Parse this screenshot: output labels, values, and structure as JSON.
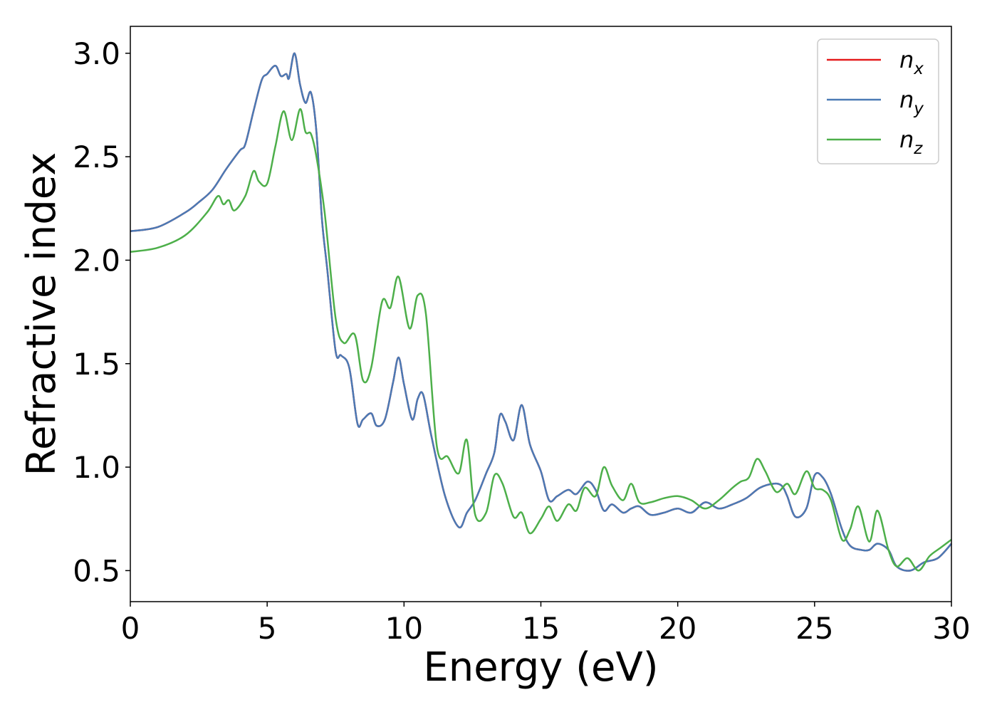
{
  "chart_data": {
    "type": "line",
    "xlabel": "Energy (eV)",
    "ylabel": "Refractive index",
    "xlim": [
      0,
      30
    ],
    "ylim": [
      0.35,
      3.13
    ],
    "xticks": [
      0,
      5,
      10,
      15,
      20,
      25,
      30
    ],
    "xtick_labels": [
      "0",
      "5",
      "10",
      "15",
      "20",
      "25",
      "30"
    ],
    "yticks": [
      0.5,
      1.0,
      1.5,
      2.0,
      2.5,
      3.0
    ],
    "ytick_labels": [
      "0.5",
      "1.0",
      "1.5",
      "2.0",
      "2.5",
      "3.0"
    ],
    "grid": false,
    "legend_position": "top-right",
    "series": [
      {
        "name": "n_x",
        "legend_main": "n",
        "legend_sub": "x",
        "color": "#e41a1c",
        "x": [
          0,
          1,
          2,
          2.5,
          3,
          3.5,
          4,
          4.2,
          4.5,
          4.8,
          5,
          5.3,
          5.5,
          5.7,
          5.8,
          6,
          6.2,
          6.4,
          6.6,
          6.8,
          7,
          7.2,
          7.5,
          7.7,
          8,
          8.3,
          8.5,
          8.8,
          9,
          9.3,
          9.6,
          9.8,
          10,
          10.3,
          10.5,
          10.7,
          11,
          11.5,
          12,
          12.3,
          12.6,
          13,
          13.3,
          13.5,
          13.7,
          14,
          14.3,
          14.6,
          15,
          15.3,
          15.6,
          16,
          16.3,
          16.7,
          17,
          17.3,
          17.6,
          18,
          18.3,
          18.6,
          19,
          19.5,
          20,
          20.5,
          21,
          21.5,
          22,
          22.5,
          23,
          23.5,
          23.8,
          24,
          24.3,
          24.7,
          25,
          25.3,
          25.6,
          26,
          26.3,
          26.7,
          27,
          27.3,
          27.7,
          28,
          28.5,
          29,
          29.5,
          30
        ],
        "y": [
          2.14,
          2.16,
          2.23,
          2.28,
          2.34,
          2.44,
          2.53,
          2.56,
          2.72,
          2.87,
          2.9,
          2.94,
          2.89,
          2.9,
          2.88,
          3.0,
          2.85,
          2.76,
          2.81,
          2.62,
          2.2,
          1.95,
          1.56,
          1.54,
          1.48,
          1.21,
          1.23,
          1.26,
          1.2,
          1.23,
          1.41,
          1.53,
          1.4,
          1.23,
          1.33,
          1.35,
          1.15,
          0.86,
          0.71,
          0.78,
          0.84,
          0.97,
          1.07,
          1.25,
          1.22,
          1.13,
          1.3,
          1.11,
          0.98,
          0.84,
          0.86,
          0.89,
          0.87,
          0.93,
          0.89,
          0.79,
          0.82,
          0.78,
          0.8,
          0.81,
          0.77,
          0.78,
          0.8,
          0.78,
          0.83,
          0.8,
          0.82,
          0.85,
          0.9,
          0.92,
          0.91,
          0.86,
          0.76,
          0.8,
          0.96,
          0.95,
          0.87,
          0.7,
          0.62,
          0.6,
          0.6,
          0.63,
          0.6,
          0.52,
          0.5,
          0.54,
          0.56,
          0.63
        ]
      },
      {
        "name": "n_y",
        "legend_main": "n",
        "legend_sub": "y",
        "color": "#4a7ab5",
        "x": [
          0,
          1,
          2,
          2.5,
          3,
          3.5,
          4,
          4.2,
          4.5,
          4.8,
          5,
          5.3,
          5.5,
          5.7,
          5.8,
          6,
          6.2,
          6.4,
          6.6,
          6.8,
          7,
          7.2,
          7.5,
          7.7,
          8,
          8.3,
          8.5,
          8.8,
          9,
          9.3,
          9.6,
          9.8,
          10,
          10.3,
          10.5,
          10.7,
          11,
          11.5,
          12,
          12.3,
          12.6,
          13,
          13.3,
          13.5,
          13.7,
          14,
          14.3,
          14.6,
          15,
          15.3,
          15.6,
          16,
          16.3,
          16.7,
          17,
          17.3,
          17.6,
          18,
          18.3,
          18.6,
          19,
          19.5,
          20,
          20.5,
          21,
          21.5,
          22,
          22.5,
          23,
          23.5,
          23.8,
          24,
          24.3,
          24.7,
          25,
          25.3,
          25.6,
          26,
          26.3,
          26.7,
          27,
          27.3,
          27.7,
          28,
          28.5,
          29,
          29.5,
          30
        ],
        "y": [
          2.14,
          2.16,
          2.23,
          2.28,
          2.34,
          2.44,
          2.53,
          2.56,
          2.72,
          2.87,
          2.9,
          2.94,
          2.89,
          2.9,
          2.88,
          3.0,
          2.85,
          2.76,
          2.81,
          2.62,
          2.2,
          1.95,
          1.56,
          1.54,
          1.48,
          1.21,
          1.23,
          1.26,
          1.2,
          1.23,
          1.41,
          1.53,
          1.4,
          1.23,
          1.33,
          1.35,
          1.15,
          0.86,
          0.71,
          0.78,
          0.84,
          0.97,
          1.07,
          1.25,
          1.22,
          1.13,
          1.3,
          1.11,
          0.98,
          0.84,
          0.86,
          0.89,
          0.87,
          0.93,
          0.89,
          0.79,
          0.82,
          0.78,
          0.8,
          0.81,
          0.77,
          0.78,
          0.8,
          0.78,
          0.83,
          0.8,
          0.82,
          0.85,
          0.9,
          0.92,
          0.91,
          0.86,
          0.76,
          0.8,
          0.96,
          0.95,
          0.87,
          0.7,
          0.62,
          0.6,
          0.6,
          0.63,
          0.6,
          0.52,
          0.5,
          0.54,
          0.56,
          0.63
        ]
      },
      {
        "name": "n_z",
        "legend_main": "n",
        "legend_sub": "z",
        "color": "#4daf4a",
        "x": [
          0,
          1,
          2,
          2.8,
          3.2,
          3.4,
          3.6,
          3.8,
          4.2,
          4.5,
          4.7,
          5,
          5.3,
          5.6,
          5.9,
          6.2,
          6.4,
          6.6,
          6.8,
          7.1,
          7.5,
          7.8,
          8.2,
          8.5,
          8.8,
          9.2,
          9.5,
          9.8,
          10.2,
          10.5,
          10.8,
          11.2,
          11.6,
          12,
          12.3,
          12.6,
          13,
          13.3,
          13.6,
          14,
          14.3,
          14.6,
          15,
          15.3,
          15.6,
          16,
          16.3,
          16.6,
          17,
          17.3,
          17.6,
          18,
          18.3,
          18.6,
          19,
          19.5,
          20,
          20.5,
          21,
          21.5,
          22,
          22.3,
          22.6,
          22.9,
          23.2,
          23.6,
          24,
          24.3,
          24.7,
          25,
          25.3,
          25.6,
          26,
          26.3,
          26.6,
          27,
          27.3,
          27.7,
          28,
          28.4,
          28.8,
          29.2,
          29.6,
          30
        ],
        "y": [
          2.04,
          2.06,
          2.12,
          2.23,
          2.31,
          2.27,
          2.29,
          2.24,
          2.31,
          2.43,
          2.38,
          2.37,
          2.55,
          2.72,
          2.58,
          2.73,
          2.62,
          2.61,
          2.5,
          2.23,
          1.72,
          1.6,
          1.64,
          1.42,
          1.48,
          1.8,
          1.77,
          1.92,
          1.67,
          1.83,
          1.74,
          1.1,
          1.05,
          0.97,
          1.13,
          0.77,
          0.78,
          0.96,
          0.92,
          0.76,
          0.78,
          0.68,
          0.75,
          0.81,
          0.74,
          0.82,
          0.79,
          0.9,
          0.86,
          1.0,
          0.91,
          0.84,
          0.92,
          0.83,
          0.83,
          0.85,
          0.86,
          0.84,
          0.8,
          0.84,
          0.9,
          0.93,
          0.95,
          1.04,
          0.98,
          0.88,
          0.92,
          0.87,
          0.98,
          0.9,
          0.89,
          0.84,
          0.65,
          0.7,
          0.81,
          0.64,
          0.79,
          0.6,
          0.52,
          0.56,
          0.5,
          0.57,
          0.61,
          0.65
        ]
      }
    ]
  }
}
